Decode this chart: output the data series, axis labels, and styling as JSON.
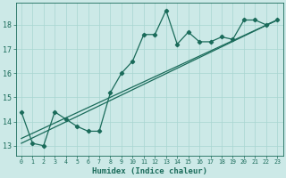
{
  "xlabel": "Humidex (Indice chaleur)",
  "bg_color": "#cce9e7",
  "grid_color": "#a8d5d1",
  "line_color": "#1a6b5a",
  "xlim": [
    -0.5,
    23.5
  ],
  "ylim": [
    12.6,
    18.9
  ],
  "yticks": [
    13,
    14,
    15,
    16,
    17,
    18
  ],
  "xticks": [
    0,
    1,
    2,
    3,
    4,
    5,
    6,
    7,
    8,
    9,
    10,
    11,
    12,
    13,
    14,
    15,
    16,
    17,
    18,
    19,
    20,
    21,
    22,
    23
  ],
  "series1_x": [
    0,
    1,
    2,
    3,
    4,
    5,
    6,
    7,
    8,
    9,
    10,
    11,
    12,
    13,
    14,
    15,
    16,
    17,
    18,
    19,
    20,
    21,
    22,
    23
  ],
  "series1_y": [
    14.4,
    13.1,
    13.0,
    14.4,
    14.1,
    13.8,
    13.6,
    13.6,
    15.2,
    16.0,
    16.5,
    17.6,
    17.6,
    18.6,
    17.2,
    17.7,
    17.3,
    17.3,
    17.5,
    17.4,
    18.2,
    18.2,
    18.0,
    18.2
  ],
  "trend1_x": [
    0,
    23
  ],
  "trend1_y": [
    13.3,
    18.2
  ],
  "trend2_x": [
    0,
    23
  ],
  "trend2_y": [
    13.1,
    18.2
  ]
}
